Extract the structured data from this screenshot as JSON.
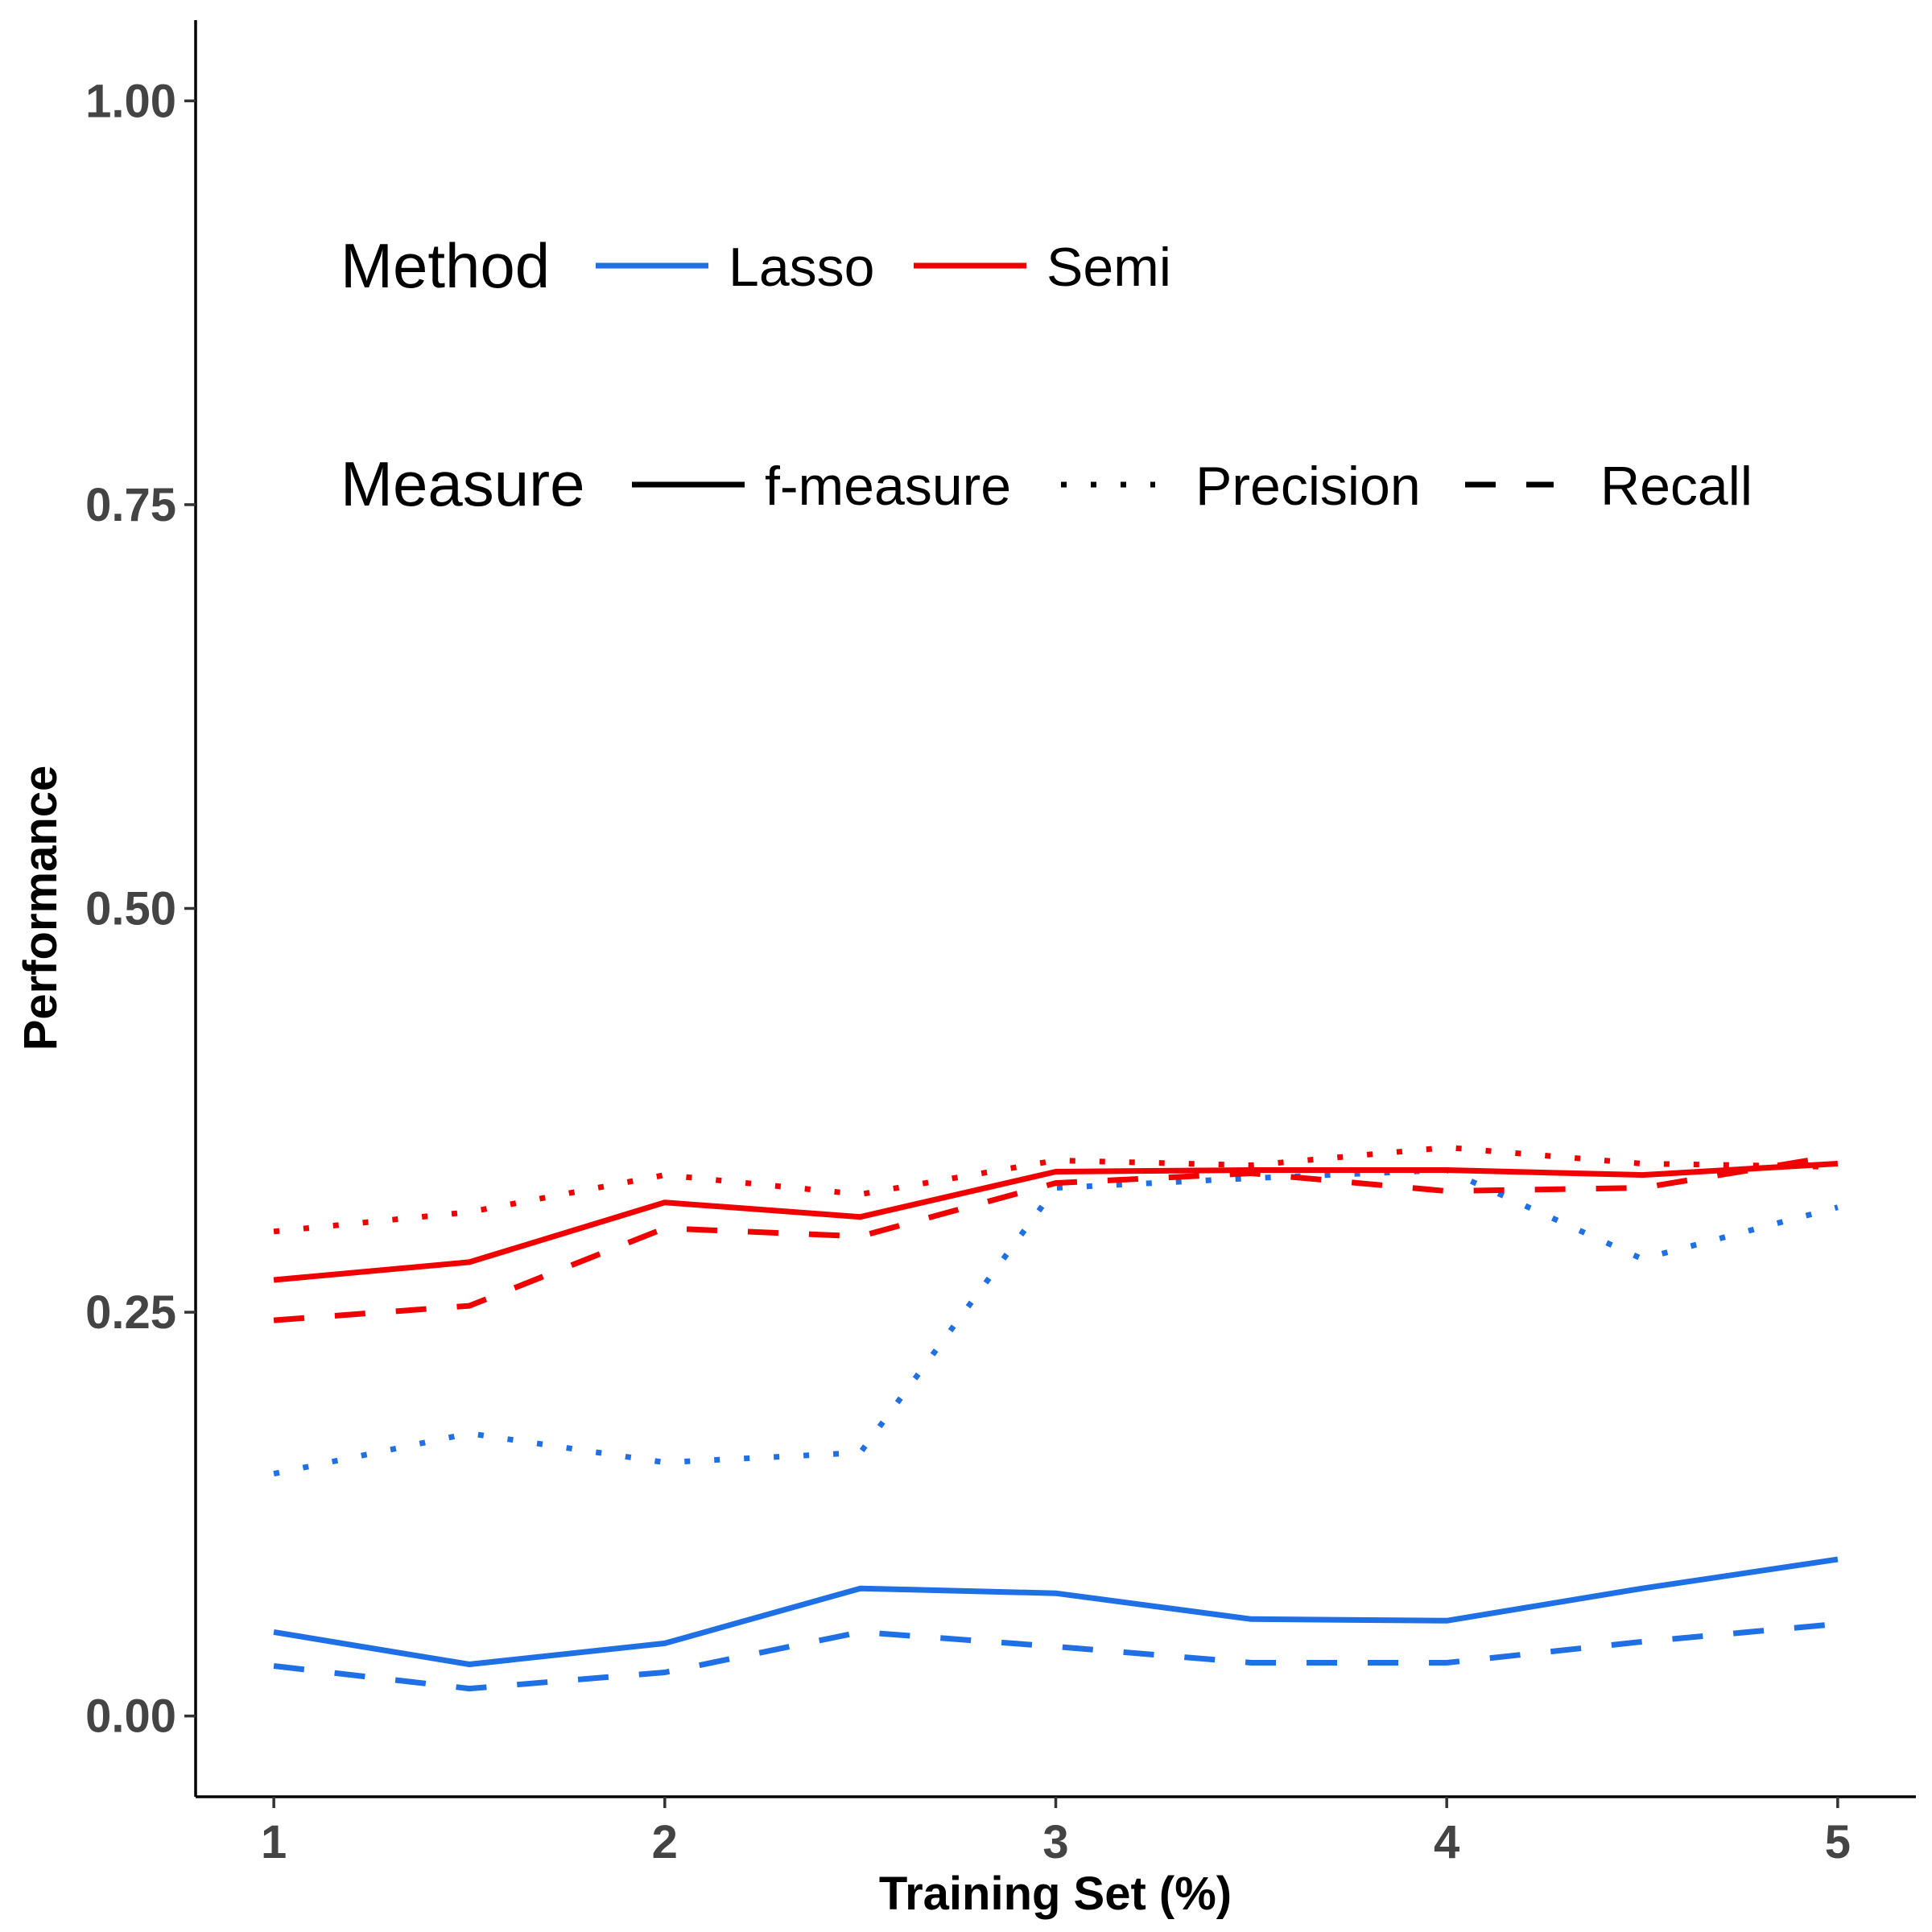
{
  "chart_data": {
    "type": "line",
    "xlabel": "Training Set (%)",
    "ylabel": "Performance",
    "xlim": [
      0.8,
      5.2
    ],
    "ylim": [
      -0.05,
      1.05
    ],
    "x_ticks": [
      1,
      2,
      3,
      4,
      5
    ],
    "x_tick_labels": [
      "1",
      "2",
      "3",
      "4",
      "5"
    ],
    "y_ticks": [
      0,
      0.25,
      0.5,
      0.75,
      1.0
    ],
    "y_tick_labels": [
      "0.00",
      "0.25",
      "0.50",
      "0.75",
      "1.00"
    ],
    "grid": false,
    "x": [
      1,
      1.5,
      2,
      2.5,
      3,
      3.5,
      4,
      4.5,
      5
    ],
    "series": [
      {
        "method": "Lasso",
        "measure": "f-measure",
        "color": "#1F6FE5",
        "dash": "solid",
        "values": [
          0.052,
          0.032,
          0.045,
          0.079,
          0.076,
          0.06,
          0.059,
          0.079,
          0.097
        ]
      },
      {
        "method": "Lasso",
        "measure": "Precision",
        "color": "#1F6FE5",
        "dash": "dotted",
        "values": [
          0.15,
          0.175,
          0.157,
          0.163,
          0.327,
          0.333,
          0.338,
          0.283,
          0.315
        ]
      },
      {
        "method": "Lasso",
        "measure": "Recall",
        "color": "#1F6FE5",
        "dash": "dashed",
        "values": [
          0.031,
          0.017,
          0.027,
          0.052,
          0.043,
          0.033,
          0.033,
          0.046,
          0.057
        ]
      },
      {
        "method": "Semi",
        "measure": "f-measure",
        "color": "#F00000",
        "dash": "solid",
        "values": [
          0.27,
          0.281,
          0.318,
          0.309,
          0.337,
          0.338,
          0.338,
          0.335,
          0.342
        ]
      },
      {
        "method": "Semi",
        "measure": "Precision",
        "color": "#F00000",
        "dash": "dotted",
        "values": [
          0.3,
          0.312,
          0.335,
          0.323,
          0.344,
          0.341,
          0.352,
          0.342,
          0.34
        ]
      },
      {
        "method": "Semi",
        "measure": "Recall",
        "color": "#F00000",
        "dash": "dashed",
        "values": [
          0.245,
          0.254,
          0.302,
          0.297,
          0.33,
          0.336,
          0.325,
          0.327,
          0.347
        ]
      }
    ],
    "legend": {
      "placement": "top-left inside",
      "method_title": "Method",
      "methods": [
        {
          "label": "Lasso",
          "color": "#1F6FE5"
        },
        {
          "label": "Semi",
          "color": "#F00000"
        }
      ],
      "measure_title": "Measure",
      "measures": [
        {
          "label": "f-measure",
          "dash": "solid"
        },
        {
          "label": "Precision",
          "dash": "dotted"
        },
        {
          "label": "Recall",
          "dash": "dashed"
        }
      ]
    }
  }
}
